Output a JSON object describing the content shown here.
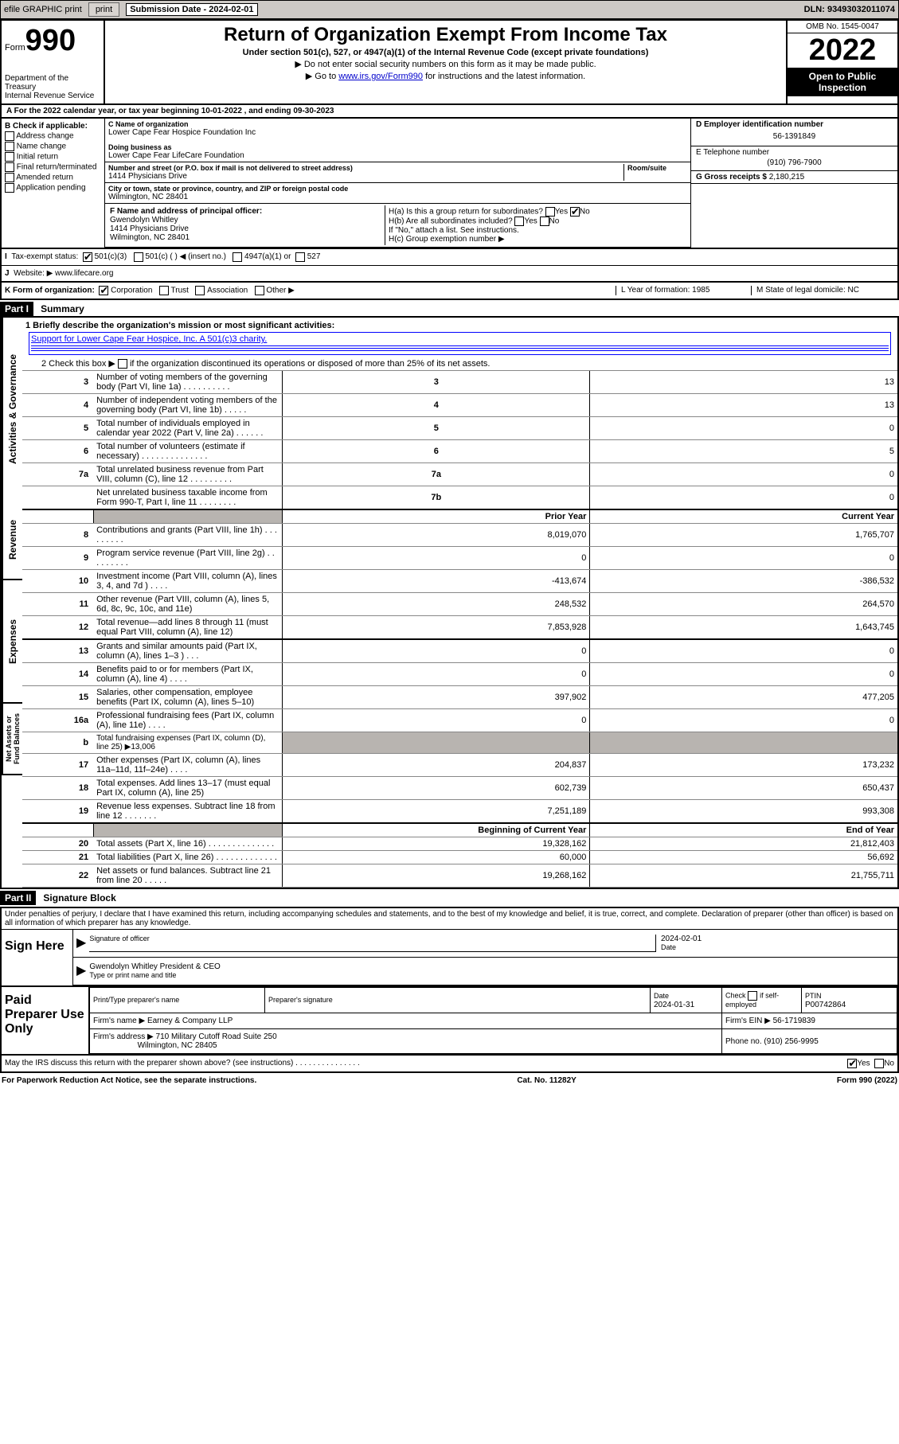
{
  "topbar": {
    "efile": "efile GRAPHIC print",
    "subdate_label": "Submission Date - 2024-02-01",
    "dln": "DLN: 93493032011074"
  },
  "header": {
    "form_word": "Form",
    "form_no": "990",
    "dept": "Department of the Treasury",
    "irs": "Internal Revenue Service",
    "title": "Return of Organization Exempt From Income Tax",
    "sub": "Under section 501(c), 527, or 4947(a)(1) of the Internal Revenue Code (except private foundations)",
    "note1": "▶ Do not enter social security numbers on this form as it may be made public.",
    "note2_pre": "▶ Go to ",
    "note2_link": "www.irs.gov/Form990",
    "note2_post": " for instructions and the latest information.",
    "omb": "OMB No. 1545-0047",
    "year": "2022",
    "open": "Open to Public Inspection"
  },
  "lineA": "A For the 2022 calendar year, or tax year beginning 10-01-2022    , and ending 09-30-2023",
  "B": {
    "label": "B Check if applicable:",
    "opts": [
      "Address change",
      "Name change",
      "Initial return",
      "Final return/terminated",
      "Amended return",
      "Application pending"
    ]
  },
  "C": {
    "name_label": "C Name of organization",
    "name": "Lower Cape Fear Hospice Foundation Inc",
    "dba_label": "Doing business as",
    "dba": "Lower Cape Fear LifeCare Foundation",
    "addr_label": "Number and street (or P.O. box if mail is not delivered to street address)",
    "addr": "1414 Physicians Drive",
    "room": "Room/suite",
    "city_label": "City or town, state or province, country, and ZIP or foreign postal code",
    "city": "Wilmington, NC  28401"
  },
  "D": {
    "label": "D Employer identification number",
    "val": "56-1391849"
  },
  "E": {
    "label": "E Telephone number",
    "val": "(910) 796-7900"
  },
  "G": {
    "label": "G Gross receipts $",
    "val": "2,180,215"
  },
  "F": {
    "label": "F Name and address of principal officer:",
    "name": "Gwendolyn Whitley",
    "addr": "1414 Physicians Drive",
    "city": "Wilmington, NC  28401"
  },
  "H": {
    "a": "H(a)  Is this a group return for subordinates?",
    "b": "H(b)  Are all subordinates included?",
    "b2": "If \"No,\" attach a list. See instructions.",
    "c": "H(c)  Group exemption number ▶"
  },
  "I": {
    "label": "Tax-exempt status:",
    "o1": "501(c)(3)",
    "o2": "501(c) (   ) ◀ (insert no.)",
    "o3": "4947(a)(1) or",
    "o4": "527"
  },
  "J": {
    "label": "Website: ▶",
    "val": "www.lifecare.org"
  },
  "K": {
    "label": "K Form of organization:",
    "opts": [
      "Corporation",
      "Trust",
      "Association",
      "Other ▶"
    ]
  },
  "L": {
    "label": "L Year of formation:",
    "val": "1985"
  },
  "M": {
    "label": "M State of legal domicile:",
    "val": "NC"
  },
  "part1": {
    "hdr": "Part I",
    "title": "Summary",
    "l1": "1   Briefly describe the organization's mission or most significant activities:",
    "mission": "Support for Lower Cape Fear Hospice, Inc. A 501(c)3 charity.",
    "l2_pre": "2   Check this box ▶",
    "l2_post": " if the organization discontinued its operations or disposed of more than 25% of its net assets.",
    "rows_top": [
      {
        "n": "3",
        "t": "Number of voting members of the governing body (Part VI, line 1a)   .   .   .   .   .   .   .   .   .   .",
        "v": "13"
      },
      {
        "n": "4",
        "t": "Number of independent voting members of the governing body (Part VI, line 1b)   .   .   .   .   .",
        "v": "13"
      },
      {
        "n": "5",
        "t": "Total number of individuals employed in calendar year 2022 (Part V, line 2a)   .   .   .   .   .   .",
        "v": "0"
      },
      {
        "n": "6",
        "t": "Total number of volunteers (estimate if necessary)   .   .   .   .   .   .   .   .   .   .   .   .   .   .",
        "v": "5"
      },
      {
        "n": "7a",
        "t": "Total unrelated business revenue from Part VIII, column (C), line 12   .   .   .   .   .   .   .   .   .",
        "v": "0"
      },
      {
        "n": "7b",
        "t": "Net unrelated business taxable income from Form 990-T, Part I, line 11   .   .   .   .   .   .   .   .",
        "v": "0",
        "nolabel": true
      }
    ],
    "col_prior": "Prior Year",
    "col_curr": "Current Year",
    "revenue": [
      {
        "n": "8",
        "t": "Contributions and grants (Part VIII, line 1h)   .   .   .   .   .   .   .   .   .",
        "p": "8,019,070",
        "c": "1,765,707"
      },
      {
        "n": "9",
        "t": "Program service revenue (Part VIII, line 2g)   .   .   .   .   .   .   .   .   .",
        "p": "0",
        "c": "0"
      },
      {
        "n": "10",
        "t": "Investment income (Part VIII, column (A), lines 3, 4, and 7d )   .   .   .   .",
        "p": "-413,674",
        "c": "-386,532"
      },
      {
        "n": "11",
        "t": "Other revenue (Part VIII, column (A), lines 5, 6d, 8c, 9c, 10c, and 11e)",
        "p": "248,532",
        "c": "264,570"
      },
      {
        "n": "12",
        "t": "Total revenue—add lines 8 through 11 (must equal Part VIII, column (A), line 12)",
        "p": "7,853,928",
        "c": "1,643,745"
      }
    ],
    "expenses": [
      {
        "n": "13",
        "t": "Grants and similar amounts paid (Part IX, column (A), lines 1–3 )   .   .   .",
        "p": "0",
        "c": "0"
      },
      {
        "n": "14",
        "t": "Benefits paid to or for members (Part IX, column (A), line 4)   .   .   .   .",
        "p": "0",
        "c": "0"
      },
      {
        "n": "15",
        "t": "Salaries, other compensation, employee benefits (Part IX, column (A), lines 5–10)",
        "p": "397,902",
        "c": "477,205"
      },
      {
        "n": "16a",
        "t": "Professional fundraising fees (Part IX, column (A), line 11e)   .   .   .   .",
        "p": "0",
        "c": "0"
      },
      {
        "n": "b",
        "t": "Total fundraising expenses (Part IX, column (D), line 25) ▶13,006",
        "shade": true
      },
      {
        "n": "17",
        "t": "Other expenses (Part IX, column (A), lines 11a–11d, 11f–24e)   .   .   .   .",
        "p": "204,837",
        "c": "173,232"
      },
      {
        "n": "18",
        "t": "Total expenses. Add lines 13–17 (must equal Part IX, column (A), line 25)",
        "p": "602,739",
        "c": "650,437"
      },
      {
        "n": "19",
        "t": "Revenue less expenses. Subtract line 18 from line 12   .   .   .   .   .   .   .",
        "p": "7,251,189",
        "c": "993,308"
      }
    ],
    "col_beg": "Beginning of Current Year",
    "col_end": "End of Year",
    "net": [
      {
        "n": "20",
        "t": "Total assets (Part X, line 16)   .   .   .   .   .   .   .   .   .   .   .   .   .   .",
        "p": "19,328,162",
        "c": "21,812,403"
      },
      {
        "n": "21",
        "t": "Total liabilities (Part X, line 26)   .   .   .   .   .   .   .   .   .   .   .   .   .",
        "p": "60,000",
        "c": "56,692"
      },
      {
        "n": "22",
        "t": "Net assets or fund balances. Subtract line 21 from line 20   .   .   .   .   .",
        "p": "19,268,162",
        "c": "21,755,711"
      }
    ]
  },
  "vlabels": {
    "act": "Activities & Governance",
    "rev": "Revenue",
    "exp": "Expenses",
    "net": "Net Assets or Fund Balances"
  },
  "part2": {
    "hdr": "Part II",
    "title": "Signature Block",
    "intro": "Under penalties of perjury, I declare that I have examined this return, including accompanying schedules and statements, and to the best of my knowledge and belief, it is true, correct, and complete. Declaration of preparer (other than officer) is based on all information of which preparer has any knowledge.",
    "sign_here": "Sign Here",
    "sig_officer": "Signature of officer",
    "date": "Date",
    "sig_date": "2024-02-01",
    "officer": "Gwendolyn Whitley  President & CEO",
    "type_name": "Type or print name and title"
  },
  "paid": {
    "label": "Paid Preparer Use Only",
    "h1": "Print/Type preparer's name",
    "h2": "Preparer's signature",
    "h3": "Date",
    "h3v": "2024-01-31",
    "h4": "Check",
    "h4b": "if self-employed",
    "h5": "PTIN",
    "h5v": "P00742864",
    "firm": "Firm's name   ▶",
    "firmv": "Earney & Company LLP",
    "ein": "Firm's EIN ▶",
    "einv": "56-1719839",
    "addr": "Firm's address ▶",
    "addrv": "710 Military Cutoff Road Suite 250",
    "addrv2": "Wilmington, NC  28405",
    "phone": "Phone no.",
    "phonev": "(910) 256-9995"
  },
  "may_discuss": "May the IRS discuss this return with the preparer shown above? (see instructions)   .   .   .   .   .   .   .   .   .   .   .   .   .   .   .",
  "footer": {
    "pra": "For Paperwork Reduction Act Notice, see the separate instructions.",
    "cat": "Cat. No. 11282Y",
    "form": "Form 990 (2022)"
  }
}
